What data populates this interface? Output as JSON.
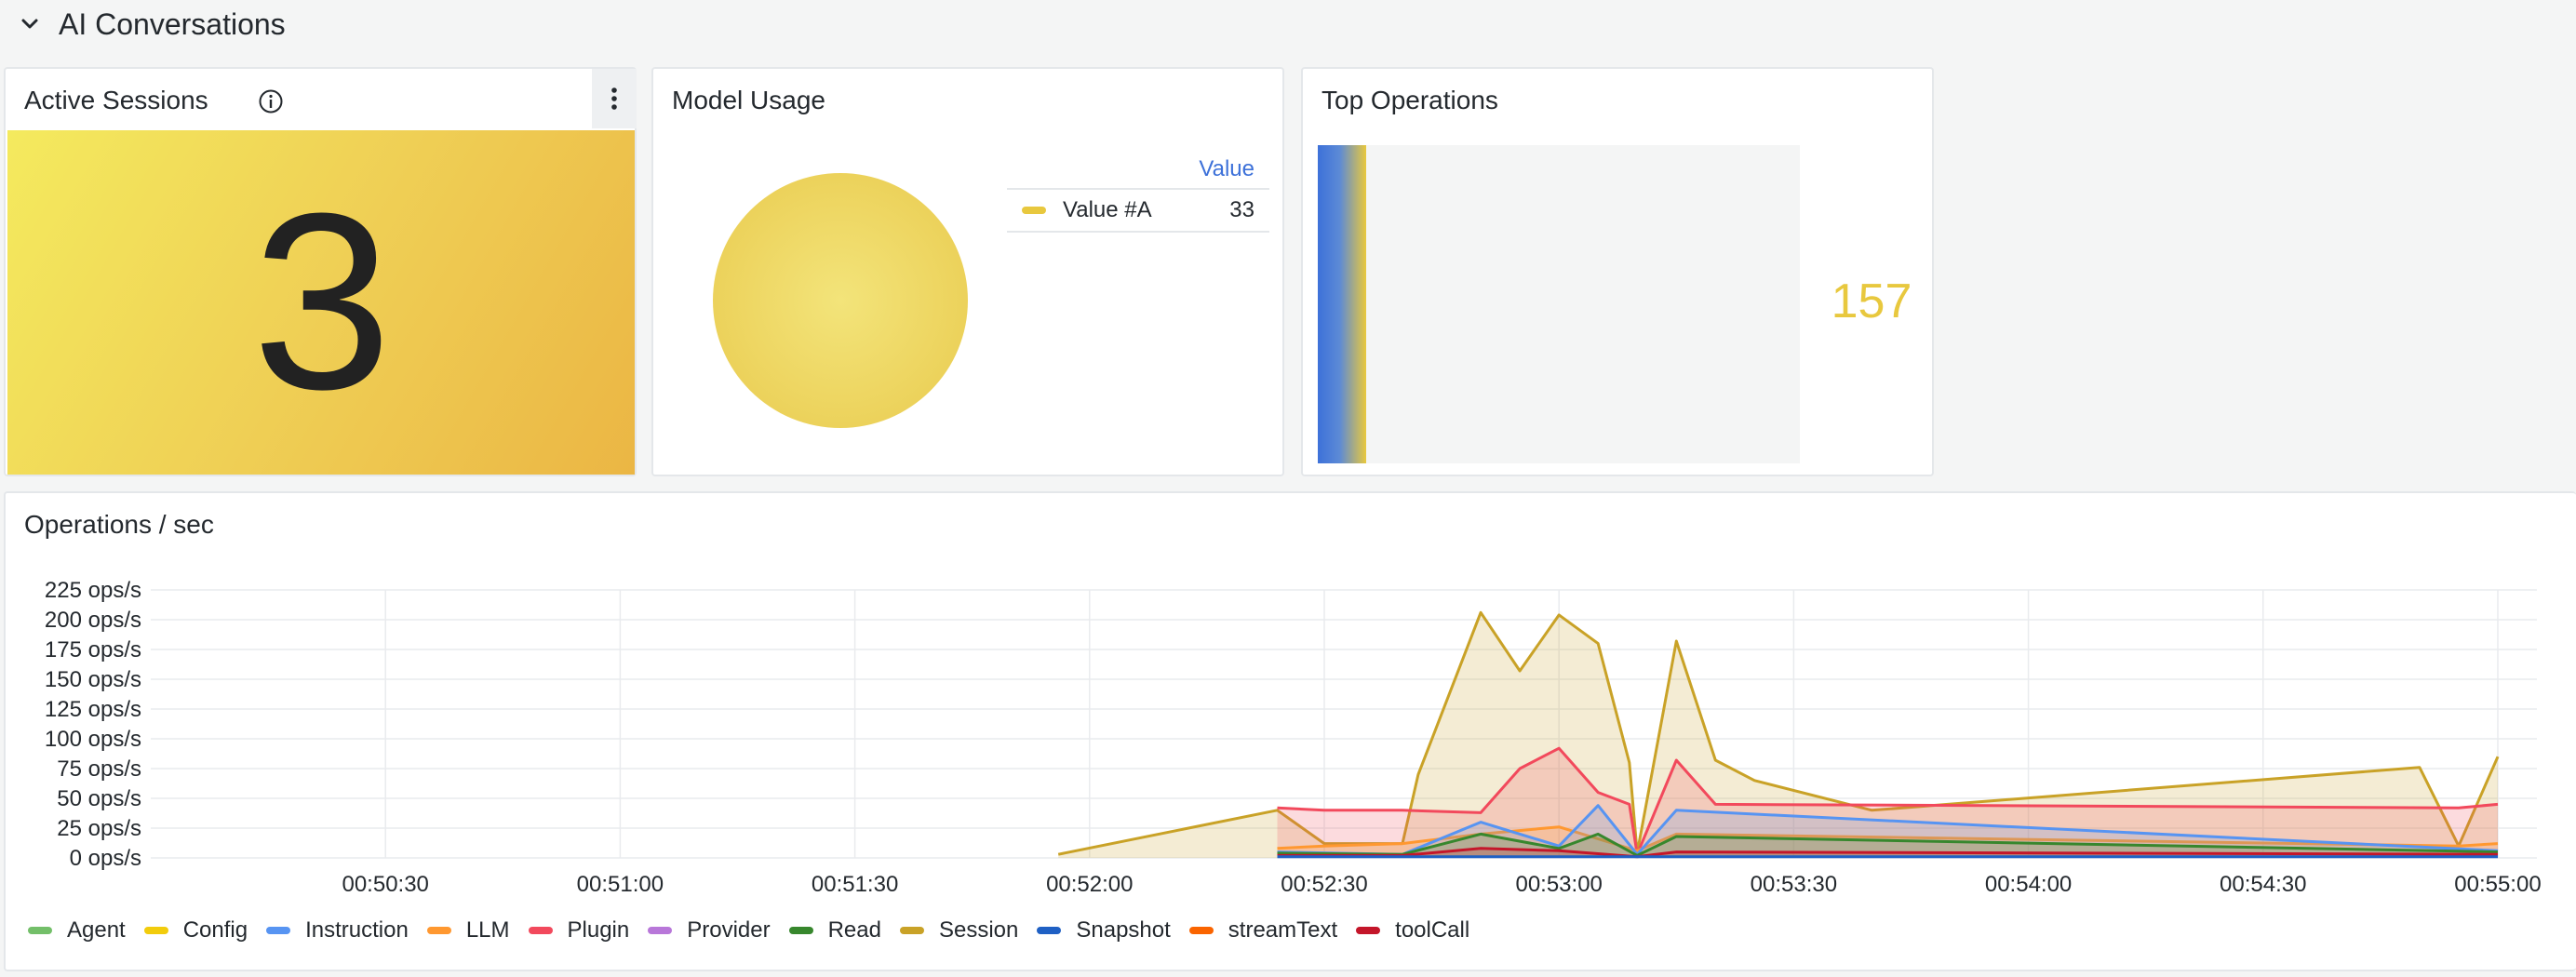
{
  "row": {
    "title": "AI Conversations"
  },
  "active_sessions": {
    "title": "Active Sessions",
    "value": "3"
  },
  "model_usage": {
    "title": "Model Usage",
    "legend_header": "Value",
    "legend_rows": [
      {
        "label": "Value #A",
        "value": "33",
        "color": "#e8c83e"
      }
    ]
  },
  "top_operations": {
    "title": "Top Operations",
    "value": "157"
  },
  "operations": {
    "title": "Operations / sec",
    "legend": [
      {
        "name": "Agent",
        "color": "#73bf69"
      },
      {
        "name": "Config",
        "color": "#f2cc0c"
      },
      {
        "name": "Instruction",
        "color": "#5794f2"
      },
      {
        "name": "LLM",
        "color": "#ff9830"
      },
      {
        "name": "Plugin",
        "color": "#f2495c"
      },
      {
        "name": "Provider",
        "color": "#b877d9"
      },
      {
        "name": "Read",
        "color": "#37872d"
      },
      {
        "name": "Session",
        "color": "#c9a227"
      },
      {
        "name": "Snapshot",
        "color": "#1f60c4"
      },
      {
        "name": "streamText",
        "color": "#fa6400"
      },
      {
        "name": "toolCall",
        "color": "#c4162a"
      }
    ]
  },
  "chart_data": {
    "type": "area",
    "title": "Operations / sec",
    "y_unit": "ops/s",
    "ylim": [
      0,
      225
    ],
    "y_ticks": [
      "225 ops/s",
      "200 ops/s",
      "175 ops/s",
      "150 ops/s",
      "125 ops/s",
      "100 ops/s",
      "75 ops/s",
      "50 ops/s",
      "25 ops/s",
      "0 ops/s"
    ],
    "x_range": [
      "00:50:00",
      "00:55:05"
    ],
    "x_ticks": [
      "00:50:30",
      "00:51:00",
      "00:51:30",
      "00:52:00",
      "00:52:30",
      "00:53:00",
      "00:53:30",
      "00:54:00",
      "00:54:30",
      "00:55:00"
    ],
    "grid": true,
    "legend_position": "bottom",
    "series": [
      {
        "name": "Session",
        "x": [
          "00:51:56",
          "00:52:24",
          "00:52:30",
          "00:52:40",
          "00:52:42",
          "00:52:50",
          "00:52:55",
          "00:53:00",
          "00:53:05",
          "00:53:09",
          "00:53:10",
          "00:53:15",
          "00:53:20",
          "00:53:25",
          "00:53:40",
          "00:54:50",
          "00:54:55",
          "00:55:00"
        ],
        "values": [
          3,
          40,
          12,
          12,
          70,
          206,
          157,
          204,
          180,
          80,
          4,
          182,
          82,
          65,
          40,
          76,
          10,
          85
        ]
      },
      {
        "name": "Plugin",
        "x": [
          "00:52:24",
          "00:52:30",
          "00:52:40",
          "00:52:50",
          "00:52:55",
          "00:53:00",
          "00:53:05",
          "00:53:09",
          "00:53:10",
          "00:53:15",
          "00:53:20",
          "00:54:55",
          "00:55:00"
        ],
        "values": [
          42,
          40,
          40,
          38,
          75,
          92,
          55,
          45,
          3,
          82,
          45,
          42,
          45
        ]
      },
      {
        "name": "LLM",
        "x": [
          "00:52:24",
          "00:52:30",
          "00:52:40",
          "00:52:50",
          "00:53:00",
          "00:53:10",
          "00:53:15",
          "00:54:55",
          "00:55:00"
        ],
        "values": [
          8,
          10,
          12,
          20,
          26,
          6,
          20,
          10,
          12
        ]
      },
      {
        "name": "Instruction",
        "x": [
          "00:52:24",
          "00:52:40",
          "00:52:50",
          "00:53:00",
          "00:53:05",
          "00:53:10",
          "00:53:15",
          "00:55:00"
        ],
        "values": [
          5,
          3,
          30,
          10,
          44,
          3,
          40,
          6
        ]
      },
      {
        "name": "Read",
        "x": [
          "00:52:24",
          "00:52:40",
          "00:52:50",
          "00:53:00",
          "00:53:05",
          "00:53:10",
          "00:53:15",
          "00:55:00"
        ],
        "values": [
          4,
          3,
          20,
          8,
          20,
          2,
          18,
          5
        ]
      },
      {
        "name": "toolCall",
        "x": [
          "00:52:24",
          "00:52:40",
          "00:52:50",
          "00:53:00",
          "00:53:10",
          "00:53:15",
          "00:55:00"
        ],
        "values": [
          2,
          2,
          8,
          6,
          1,
          5,
          3
        ]
      },
      {
        "name": "Snapshot",
        "x": [
          "00:52:24",
          "00:52:40",
          "00:53:10",
          "00:55:00"
        ],
        "values": [
          1,
          1,
          1,
          1
        ]
      }
    ]
  }
}
